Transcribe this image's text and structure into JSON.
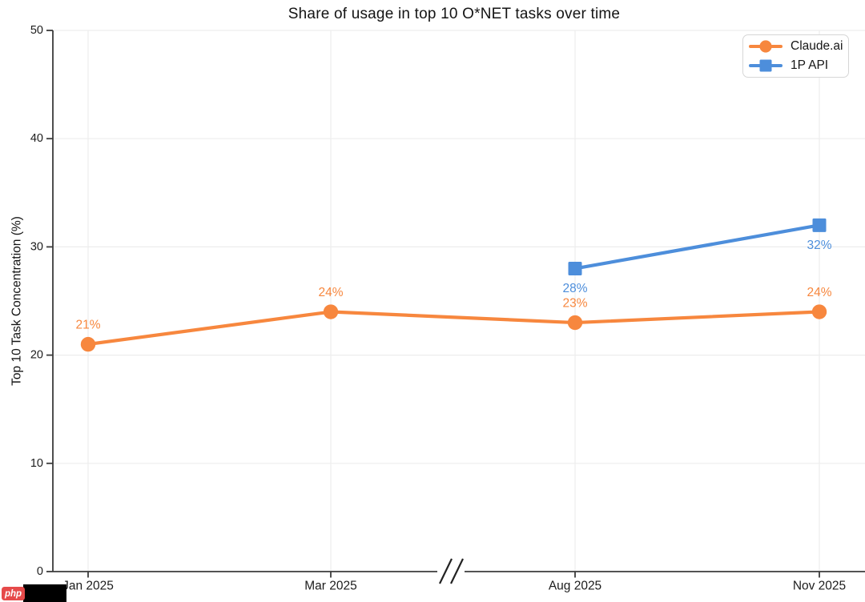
{
  "page": {
    "background": "#ffffff"
  },
  "watermark": {
    "badge_text": "php",
    "badge_color": "#E64A4A"
  },
  "chart_data": {
    "type": "line",
    "title": "Share of usage in top 10 O*NET tasks over time",
    "xlabel": "",
    "ylabel": "Top 10 Task Concentration (%)",
    "categories": [
      "Jan 2025",
      "Mar 2025",
      "Aug 2025",
      "Nov 2025"
    ],
    "y_ticks": [
      0,
      10,
      20,
      30,
      40,
      50
    ],
    "ylim": [
      0,
      50
    ],
    "grid": true,
    "axis_break": {
      "between": [
        "Mar 2025",
        "Aug 2025"
      ]
    },
    "legend": {
      "position": "top-right"
    },
    "colors": {
      "grid": "#EDEDED",
      "spine": "#3b3b3b",
      "text": "#1c1c1c"
    },
    "series": [
      {
        "name": "Claude.ai",
        "color": "#F7873E",
        "marker": "circle",
        "values": [
          21,
          24,
          23,
          24
        ],
        "point_labels": [
          "21%",
          "24%",
          "23%",
          "24%"
        ],
        "label_side": "above"
      },
      {
        "name": "1P API",
        "color": "#4D8EDB",
        "marker": "square",
        "values": [
          null,
          null,
          28,
          32
        ],
        "point_labels": [
          null,
          null,
          "28%",
          "32%"
        ],
        "label_side": "below"
      }
    ]
  }
}
